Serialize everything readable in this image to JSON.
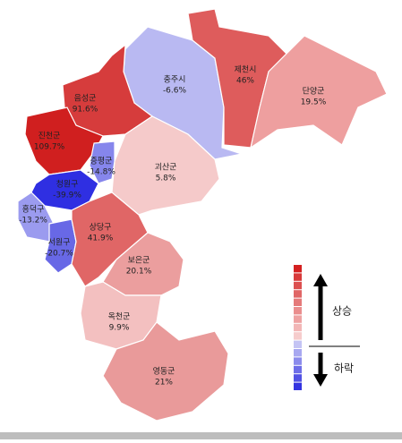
{
  "regions": [
    {
      "name": "충주시",
      "change": "-6.6%",
      "color": "#b9b9f2"
    },
    {
      "name": "제천시",
      "change": "46%",
      "color": "#de5c5c"
    },
    {
      "name": "단양군",
      "change": "19.5%",
      "color": "#ee9f9f"
    },
    {
      "name": "음성군",
      "change": "91.6%",
      "color": "#d63c3c"
    },
    {
      "name": "진천군",
      "change": "109.7%",
      "color": "#d01f1f"
    },
    {
      "name": "괴산군",
      "change": "5.8%",
      "color": "#f5caca"
    },
    {
      "name": "증평군",
      "change": "-14.8%",
      "color": "#8686ec"
    },
    {
      "name": "청원구",
      "change": "-39.9%",
      "color": "#2f2fe2"
    },
    {
      "name": "흥덕구",
      "change": "-13.2%",
      "color": "#9b9bef"
    },
    {
      "name": "서원구",
      "change": "-20.7%",
      "color": "#6868e6"
    },
    {
      "name": "상당구",
      "change": "41.9%",
      "color": "#e06666"
    },
    {
      "name": "보은군",
      "change": "20.1%",
      "color": "#eb9e9e"
    },
    {
      "name": "옥천군",
      "change": "9.9%",
      "color": "#f3c0c0"
    },
    {
      "name": "영동군",
      "change": "21%",
      "color": "#e99a9a"
    }
  ],
  "legend": {
    "colors": [
      "#d42020",
      "#d83a3a",
      "#dc5050",
      "#e06666",
      "#e57a7a",
      "#ea8e8e",
      "#eea2a2",
      "#f2b6b6",
      "#f6cccc",
      "#c4c4f4",
      "#a8a8f0",
      "#8c8cec",
      "#6e6ee8",
      "#5252e4",
      "#3434e0"
    ],
    "rise": "상승",
    "fall": "하락"
  }
}
